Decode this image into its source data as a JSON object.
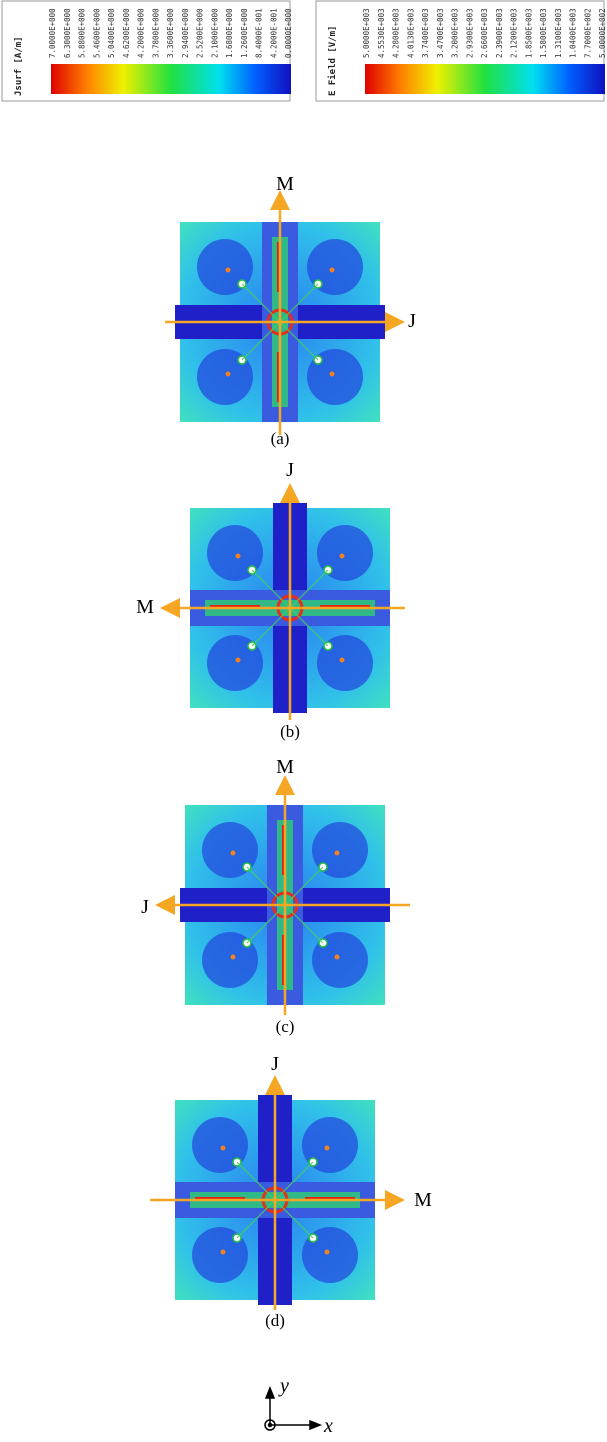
{
  "legends": [
    {
      "title": "Jsurf [A/m]",
      "values": [
        "7.0000E+000",
        "6.3000E+000",
        "5.8800E+000",
        "5.4600E+000",
        "5.0400E+000",
        "4.6200E+000",
        "4.2000E+000",
        "3.7800E+000",
        "3.3600E+000",
        "2.9400E+000",
        "2.5200E+000",
        "2.1000E+000",
        "1.6800E+000",
        "1.2600E+000",
        "8.4000E-001",
        "4.2000E-001",
        "0.0000E+000"
      ]
    },
    {
      "title": "E Field [V/m]",
      "values": [
        "5.0000E+003",
        "4.5530E+003",
        "4.2800E+003",
        "4.0130E+003",
        "3.7400E+003",
        "3.4700E+003",
        "3.2000E+003",
        "2.9300E+003",
        "2.6600E+003",
        "2.3900E+003",
        "2.1200E+003",
        "1.8500E+003",
        "1.5800E+003",
        "1.3100E+003",
        "1.0400E+003",
        "7.7000E+002",
        "5.0000E+002"
      ]
    }
  ],
  "panels": [
    {
      "label": "(a)",
      "arrows": [
        "M",
        "J"
      ]
    },
    {
      "label": "(b)",
      "arrows": [
        "J",
        "M"
      ]
    },
    {
      "label": "(c)",
      "arrows": [
        "M",
        "J"
      ]
    },
    {
      "label": "(d)",
      "arrows": [
        "J",
        "M"
      ]
    }
  ],
  "axes": {
    "y": "y",
    "x": "x"
  }
}
